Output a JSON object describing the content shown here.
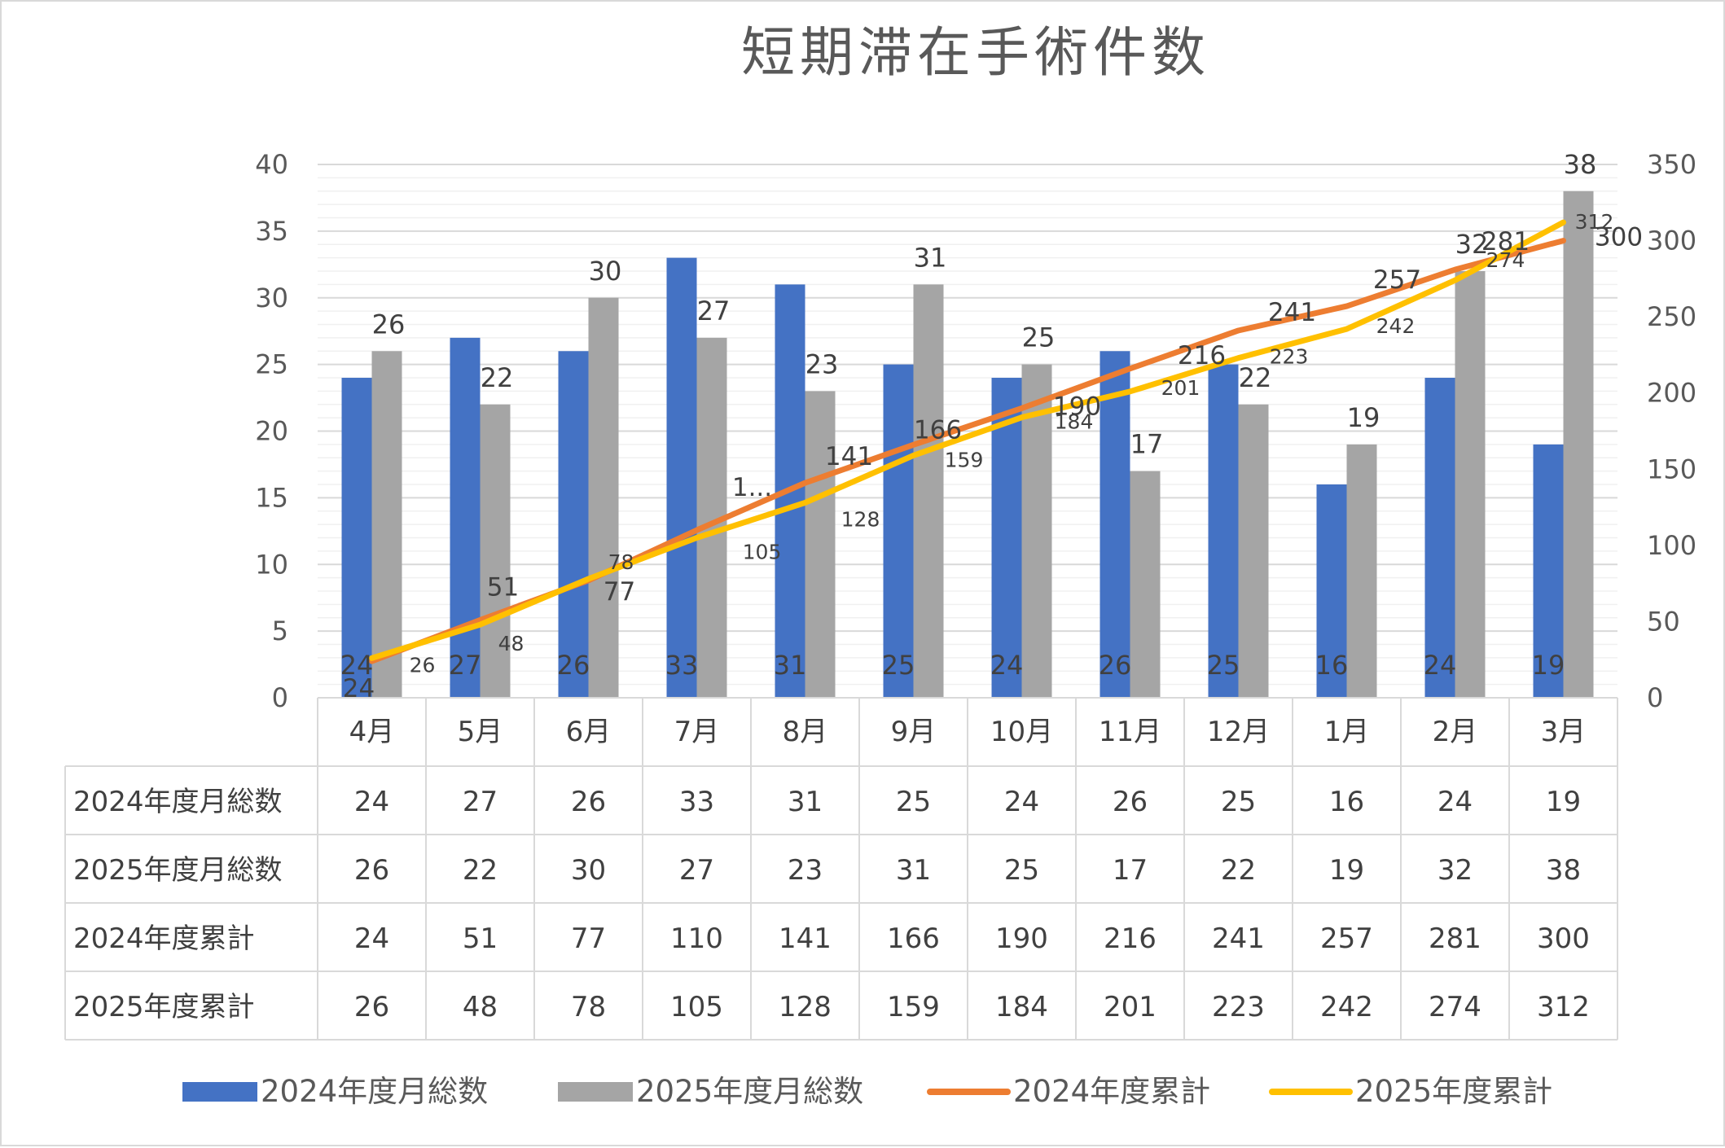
{
  "colors": {
    "s2024_monthly": "#4472c4",
    "s2025_monthly": "#a5a5a5",
    "s2024_cumulative": "#ed7d31",
    "s2025_cumulative": "#ffc000",
    "grid": "#d9d9d9",
    "text": "#595959"
  },
  "chart_data": {
    "type": "bar",
    "title": "短期滞在手術件数",
    "categories": [
      "4月",
      "5月",
      "6月",
      "7月",
      "8月",
      "9月",
      "10月",
      "11月",
      "12月",
      "1月",
      "2月",
      "3月"
    ],
    "series": [
      {
        "name": "2024年度月総数",
        "type": "bar",
        "axis": "left",
        "values": [
          24,
          27,
          26,
          33,
          31,
          25,
          24,
          26,
          25,
          16,
          24,
          19
        ]
      },
      {
        "name": "2025年度月総数",
        "type": "bar",
        "axis": "left",
        "values": [
          26,
          22,
          30,
          27,
          23,
          31,
          25,
          17,
          22,
          19,
          32,
          38
        ]
      },
      {
        "name": "2024年度累計",
        "type": "line",
        "axis": "right",
        "values": [
          24,
          51,
          77,
          110,
          141,
          166,
          190,
          216,
          241,
          257,
          281,
          300
        ]
      },
      {
        "name": "2025年度累計",
        "type": "line",
        "axis": "right",
        "values": [
          26,
          48,
          78,
          105,
          128,
          159,
          184,
          201,
          223,
          242,
          274,
          312
        ]
      }
    ],
    "y_left": {
      "min": 0,
      "max": 40,
      "ticks": [
        "0",
        "5",
        "10",
        "15",
        "20",
        "25",
        "30",
        "35",
        "40"
      ]
    },
    "y_right": {
      "min": 0,
      "max": 350,
      "ticks": [
        "0",
        "50",
        "100",
        "150",
        "200",
        "250",
        "300",
        "350"
      ]
    },
    "truncated_label": "1...",
    "grid": true,
    "legend_position": "bottom",
    "data_table": true
  }
}
